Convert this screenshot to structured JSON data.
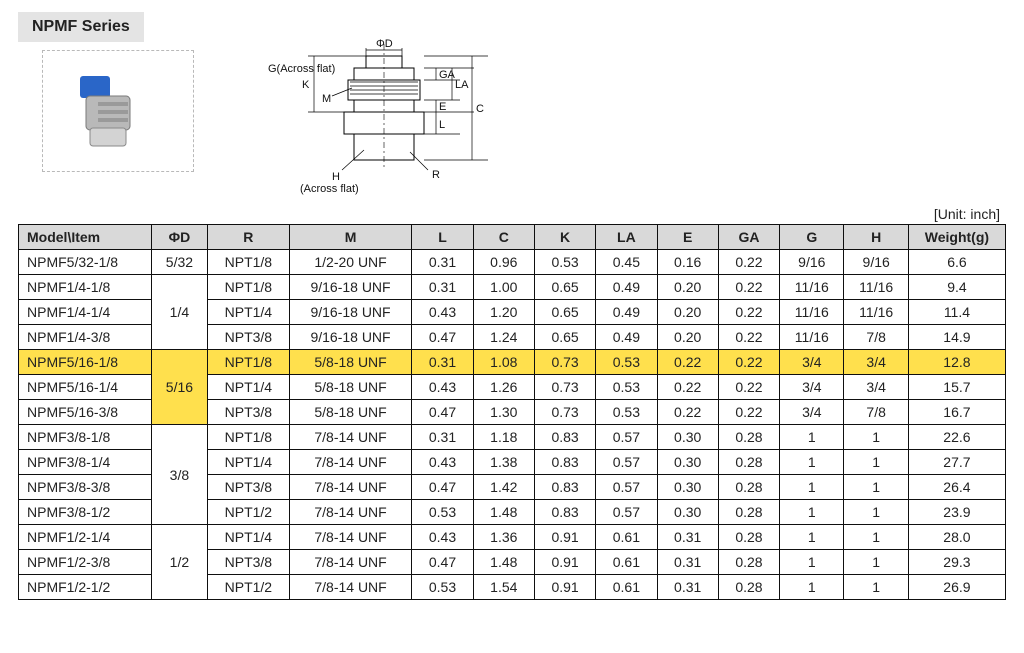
{
  "series_title": "NPMF Series",
  "unit_label": "[Unit: inch]",
  "diagram_labels": {
    "phiD": "ΦD",
    "g_across": "G(Across flat)",
    "k": "K",
    "m": "M",
    "ga": "GA",
    "la": "LA",
    "e": "E",
    "l": "L",
    "c": "C",
    "r": "R",
    "h_across": "H",
    "h_across2": "(Across flat)"
  },
  "columns": [
    "Model\\Item",
    "ΦD",
    "R",
    "M",
    "L",
    "C",
    "K",
    "LA",
    "E",
    "GA",
    "G",
    "H",
    "Weight(g)"
  ],
  "rows": [
    {
      "cells": [
        "NPMF5/32-1/8",
        "5/32",
        "NPT1/8",
        "1/2-20 UNF",
        "0.31",
        "0.96",
        "0.53",
        "0.45",
        "0.16",
        "0.22",
        "9/16",
        "9/16",
        "6.6"
      ],
      "hl": false
    },
    {
      "cells": [
        "NPMF1/4-1/8",
        "",
        "NPT1/8",
        "9/16-18 UNF",
        "0.31",
        "1.00",
        "0.65",
        "0.49",
        "0.20",
        "0.22",
        "11/16",
        "11/16",
        "9.4"
      ],
      "hl": false,
      "pd": {
        "v": "1/4",
        "span": 3
      }
    },
    {
      "cells": [
        "NPMF1/4-1/4",
        "",
        "NPT1/4",
        "9/16-18 UNF",
        "0.43",
        "1.20",
        "0.65",
        "0.49",
        "0.20",
        "0.22",
        "11/16",
        "11/16",
        "11.4"
      ],
      "hl": false,
      "skip_pd": true
    },
    {
      "cells": [
        "NPMF1/4-3/8",
        "",
        "NPT3/8",
        "9/16-18 UNF",
        "0.47",
        "1.24",
        "0.65",
        "0.49",
        "0.20",
        "0.22",
        "11/16",
        "7/8",
        "14.9"
      ],
      "hl": false,
      "skip_pd": true
    },
    {
      "cells": [
        "NPMF5/16-1/8",
        "",
        "NPT1/8",
        "5/8-18 UNF",
        "0.31",
        "1.08",
        "0.73",
        "0.53",
        "0.22",
        "0.22",
        "3/4",
        "3/4",
        "12.8"
      ],
      "hl": true,
      "pd": {
        "v": "5/16",
        "span": 3
      }
    },
    {
      "cells": [
        "NPMF5/16-1/4",
        "",
        "NPT1/4",
        "5/8-18 UNF",
        "0.43",
        "1.26",
        "0.73",
        "0.53",
        "0.22",
        "0.22",
        "3/4",
        "3/4",
        "15.7"
      ],
      "hl": false,
      "skip_pd": true
    },
    {
      "cells": [
        "NPMF5/16-3/8",
        "",
        "NPT3/8",
        "5/8-18 UNF",
        "0.47",
        "1.30",
        "0.73",
        "0.53",
        "0.22",
        "0.22",
        "3/4",
        "7/8",
        "16.7"
      ],
      "hl": false,
      "skip_pd": true
    },
    {
      "cells": [
        "NPMF3/8-1/8",
        "",
        "NPT1/8",
        "7/8-14 UNF",
        "0.31",
        "1.18",
        "0.83",
        "0.57",
        "0.30",
        "0.28",
        "1",
        "1",
        "22.6"
      ],
      "hl": false,
      "pd": {
        "v": "3/8",
        "span": 4
      }
    },
    {
      "cells": [
        "NPMF3/8-1/4",
        "",
        "NPT1/4",
        "7/8-14 UNF",
        "0.43",
        "1.38",
        "0.83",
        "0.57",
        "0.30",
        "0.28",
        "1",
        "1",
        "27.7"
      ],
      "hl": false,
      "skip_pd": true
    },
    {
      "cells": [
        "NPMF3/8-3/8",
        "",
        "NPT3/8",
        "7/8-14 UNF",
        "0.47",
        "1.42",
        "0.83",
        "0.57",
        "0.30",
        "0.28",
        "1",
        "1",
        "26.4"
      ],
      "hl": false,
      "skip_pd": true
    },
    {
      "cells": [
        "NPMF3/8-1/2",
        "",
        "NPT1/2",
        "7/8-14 UNF",
        "0.53",
        "1.48",
        "0.83",
        "0.57",
        "0.30",
        "0.28",
        "1",
        "1",
        "23.9"
      ],
      "hl": false,
      "skip_pd": true
    },
    {
      "cells": [
        "NPMF1/2-1/4",
        "",
        "NPT1/4",
        "7/8-14 UNF",
        "0.43",
        "1.36",
        "0.91",
        "0.61",
        "0.31",
        "0.28",
        "1",
        "1",
        "28.0"
      ],
      "hl": false,
      "pd": {
        "v": "1/2",
        "span": 3
      }
    },
    {
      "cells": [
        "NPMF1/2-3/8",
        "",
        "NPT3/8",
        "7/8-14 UNF",
        "0.47",
        "1.48",
        "0.91",
        "0.61",
        "0.31",
        "0.28",
        "1",
        "1",
        "29.3"
      ],
      "hl": false,
      "skip_pd": true
    },
    {
      "cells": [
        "NPMF1/2-1/2",
        "",
        "NPT1/2",
        "7/8-14 UNF",
        "0.53",
        "1.54",
        "0.91",
        "0.61",
        "0.31",
        "0.28",
        "1",
        "1",
        "26.9"
      ],
      "hl": false,
      "skip_pd": true
    }
  ],
  "style": {
    "header_bg": "#d9d9d9",
    "highlight_bg": "#ffe04d",
    "border_color": "#0f0f0f",
    "body_font_size": 14
  }
}
